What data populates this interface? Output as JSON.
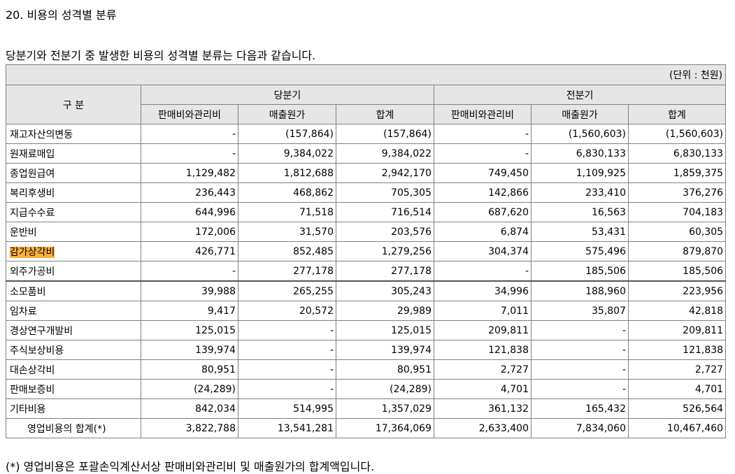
{
  "heading": "20. 비용의 성격별 분류",
  "intro": "당분기와 전분기 중 발생한 비용의 성격별 분류는 다음과 같습니다.",
  "unit": "(단위 : 천원)",
  "header": {
    "category": "구 분",
    "period1": "당분기",
    "period2": "전분기",
    "cols": [
      "판매비와관리비",
      "매출원가",
      "합계",
      "판매비와관리비",
      "매출원가",
      "합계"
    ]
  },
  "rows": [
    {
      "label": "재고자산의변동",
      "values": [
        "-",
        "(157,864)",
        "(157,864)",
        "-",
        "(1,560,603)",
        "(1,560,603)"
      ]
    },
    {
      "label": "원재료매입",
      "values": [
        "-",
        "9,384,022",
        "9,384,022",
        "-",
        "6,830,133",
        "6,830,133"
      ]
    },
    {
      "label": "종업원급여",
      "values": [
        "1,129,482",
        "1,812,688",
        "2,942,170",
        "749,450",
        "1,109,925",
        "1,859,375"
      ]
    },
    {
      "label": "복리후생비",
      "values": [
        "236,443",
        "468,862",
        "705,305",
        "142,866",
        "233,410",
        "376,276"
      ]
    },
    {
      "label": "지급수수료",
      "values": [
        "644,996",
        "71,518",
        "716,514",
        "687,620",
        "16,563",
        "704,183"
      ]
    },
    {
      "label": "운반비",
      "values": [
        "172,006",
        "31,570",
        "203,576",
        "6,874",
        "53,431",
        "60,305"
      ]
    },
    {
      "label": "감가상각비",
      "values": [
        "426,771",
        "852,485",
        "1,279,256",
        "304,374",
        "575,496",
        "879,870"
      ]
    },
    {
      "label": "외주가공비",
      "values": [
        "-",
        "277,178",
        "277,178",
        "-",
        "185,506",
        "185,506"
      ]
    },
    {
      "label": "소모품비",
      "values": [
        "39,988",
        "265,255",
        "305,243",
        "34,996",
        "188,960",
        "223,956"
      ]
    },
    {
      "label": "임차료",
      "values": [
        "9,417",
        "20,572",
        "29,989",
        "7,011",
        "35,807",
        "42,818"
      ]
    },
    {
      "label": "경상연구개발비",
      "values": [
        "125,015",
        "-",
        "125,015",
        "209,811",
        "-",
        "209,811"
      ]
    },
    {
      "label": "주식보상비용",
      "values": [
        "139,974",
        "-",
        "139,974",
        "121,838",
        "-",
        "121,838"
      ]
    },
    {
      "label": "대손상각비",
      "values": [
        "80,951",
        "-",
        "80,951",
        "2,727",
        "-",
        "2,727"
      ]
    },
    {
      "label": "판매보증비",
      "values": [
        "(24,289)",
        "-",
        "(24,289)",
        "4,701",
        "-",
        "4,701"
      ]
    },
    {
      "label": "기타비용",
      "values": [
        "842,034",
        "514,995",
        "1,357,029",
        "361,132",
        "165,432",
        "526,564"
      ]
    }
  ],
  "total": {
    "label": "영업비용의 합계(*)",
    "values": [
      "3,822,788",
      "13,541,281",
      "17,364,069",
      "2,633,400",
      "7,834,060",
      "10,467,460"
    ]
  },
  "footnote": "(*) 영업비용은 포괄손익계산서상 판매비와관리비 및 매출원가의 합계액입니다.",
  "highlight_color": "#ffae3a",
  "header_bg": "#e6e6e6"
}
